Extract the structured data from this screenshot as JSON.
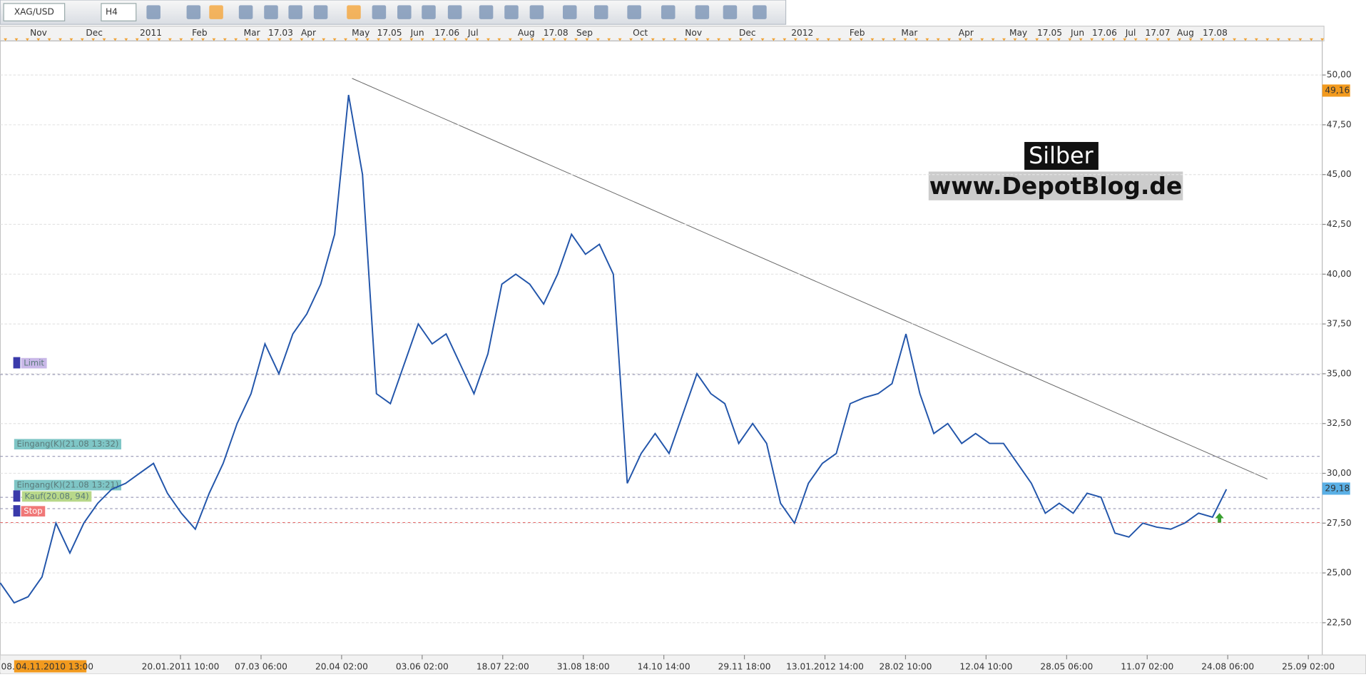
{
  "toolbar": {
    "symbol": "XAG/USD",
    "timeframe": "H4"
  },
  "top_axis": [
    "Nov",
    "Dec",
    "2011",
    "Feb",
    "Mar",
    "17.03",
    "Apr",
    "May",
    "17.05",
    "Jun",
    "17.06",
    "Jul",
    "Aug",
    "17.08",
    "Sep",
    "Oct",
    "Nov",
    "Dec",
    "2012",
    "Feb",
    "Mar",
    "Apr",
    "May",
    "17.05",
    "Jun",
    "17.06",
    "Jul",
    "17.07",
    "Aug",
    "17.08"
  ],
  "bottom_axis": {
    "start_prefix": "08.",
    "cursor": "04.11.2010 13:00",
    "labels": [
      "20.01.2011 10:00",
      "07.03 06:00",
      "20.04 02:00",
      "03.06 02:00",
      "18.07 22:00",
      "31.08 18:00",
      "14.10 14:00",
      "29.11 18:00",
      "13.01.2012 14:00",
      "28.02 10:00",
      "12.04 10:00",
      "28.05 06:00",
      "11.07 02:00",
      "24.08 06:00",
      "25.09 02:00"
    ]
  },
  "orders": [
    "Limit",
    "Eingang(K)(21.08 13:32)",
    "Eingang(K)(21.08 13:21)",
    "Kauf(20.08, 94)",
    "Stop"
  ],
  "price_tags": [
    "49,16",
    "29,18"
  ],
  "watermark": {
    "title": "Silber",
    "site": "www.DepotBlog.de"
  },
  "chart_data": {
    "type": "line",
    "color": "#2255aa",
    "values": [
      24.5,
      23.5,
      23.8,
      24.8,
      27.5,
      26,
      27.5,
      28.5,
      29.2,
      29.5,
      30,
      30.5,
      29,
      28,
      27.2,
      29,
      30.5,
      32.5,
      34,
      36.5,
      35,
      37,
      38,
      39.5,
      42,
      49,
      45,
      34,
      33.5,
      35.5,
      37.5,
      36.5,
      37,
      35.5,
      34,
      36,
      39.5,
      40,
      39.5,
      38.5,
      40,
      42,
      41,
      41.5,
      40,
      29.5,
      31,
      32,
      31,
      33,
      35,
      34,
      33.5,
      31.5,
      32.5,
      31.5,
      28.5,
      27.5,
      29.5,
      30.5,
      31,
      33.5,
      33.8,
      34,
      34.5,
      37,
      34,
      32,
      32.5,
      31.5,
      32,
      31.5,
      31.5,
      30.5,
      29.5,
      28,
      28.5,
      28,
      29,
      28.8,
      27,
      26.8,
      27.5,
      27.3,
      27.2,
      27.5,
      28,
      27.8,
      29.2
    ],
    "ylim": [
      20.88,
      51.71
    ],
    "yticks": [
      {
        "value": 22.5,
        "label": "22,50"
      },
      {
        "value": 25,
        "label": "25,00"
      },
      {
        "value": 27.5,
        "label": "27,50"
      },
      {
        "value": 30,
        "label": "30,00"
      },
      {
        "value": 32.5,
        "label": "32,50"
      },
      {
        "value": 35,
        "label": "35,00"
      },
      {
        "value": 37.5,
        "label": "37,50"
      },
      {
        "value": 40,
        "label": "40,00"
      },
      {
        "value": 42.5,
        "label": "42,50"
      },
      {
        "value": 45,
        "label": "45,00"
      },
      {
        "value": 47.5,
        "label": "47,50"
      },
      {
        "value": 50,
        "label": "50,00"
      }
    ],
    "grid": true
  }
}
